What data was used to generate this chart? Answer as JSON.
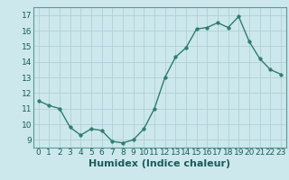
{
  "title": "",
  "xlabel": "Humidex (Indice chaleur)",
  "x_values": [
    0,
    1,
    2,
    3,
    4,
    5,
    6,
    7,
    8,
    9,
    10,
    11,
    12,
    13,
    14,
    15,
    16,
    17,
    18,
    19,
    20,
    21,
    22,
    23
  ],
  "y_values": [
    11.5,
    11.2,
    11.0,
    9.8,
    9.3,
    9.7,
    9.6,
    8.9,
    8.8,
    9.0,
    9.7,
    11.0,
    13.0,
    14.3,
    14.9,
    16.1,
    16.2,
    16.5,
    16.2,
    16.9,
    15.3,
    14.2,
    13.5,
    13.2
  ],
  "line_color": "#2e7d6e",
  "marker_color": "#2e7d6e",
  "bg_color": "#cce8ec",
  "grid_color": "#b0d0d5",
  "ylim": [
    8.5,
    17.5
  ],
  "xlim": [
    -0.5,
    23.5
  ],
  "yticks": [
    9,
    10,
    11,
    12,
    13,
    14,
    15,
    16,
    17
  ],
  "xtick_labels": [
    "0",
    "1",
    "2",
    "3",
    "4",
    "5",
    "6",
    "7",
    "8",
    "9",
    "10",
    "11",
    "12",
    "13",
    "14",
    "15",
    "16",
    "17",
    "18",
    "19",
    "20",
    "21",
    "22",
    "23"
  ],
  "tick_fontsize": 6.5,
  "xlabel_fontsize": 8
}
